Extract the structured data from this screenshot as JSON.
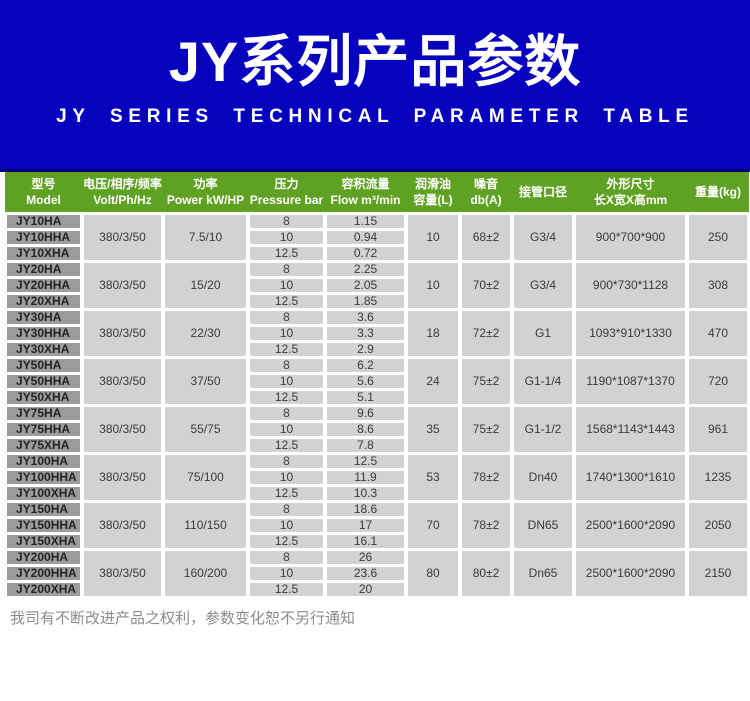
{
  "colors": {
    "brand-blue": "#0702BE",
    "brand-blue-dark": "#030173",
    "header-green": "#5FA122",
    "model-gray": "#9C9C9C",
    "cell-gray": "#D2D2D2",
    "cell-text": "#3A3A3A",
    "footer-text": "#8C8C8C"
  },
  "banner": {
    "title": "JY系列产品参数",
    "subtitle": "JY SERIES TECHNICAL PARAMETER TABLE"
  },
  "table": {
    "headers": [
      {
        "line1": "型号",
        "line2": "Model"
      },
      {
        "line1": "电压/相序/频率",
        "line2": "Volt/Ph/Hz"
      },
      {
        "line1": "功率",
        "line2": "Power kW/HP"
      },
      {
        "line1": "压力",
        "line2": "Pressure bar"
      },
      {
        "line1": "容积流量",
        "line2": "Flow m³/min"
      },
      {
        "line1": "润滑油",
        "line2": "容量(L)"
      },
      {
        "line1": "噪音",
        "line2": "db(A)"
      },
      {
        "line1": "接管口径",
        "line2": ""
      },
      {
        "line1": "外形尺寸",
        "line2": "长X宽X高mm"
      },
      {
        "line1": "重量(kg)",
        "line2": ""
      }
    ],
    "groups": [
      {
        "volt": "380/3/50",
        "power": "7.5/10",
        "oil": "10",
        "noise": "68±2",
        "pipe": "G3/4",
        "dims": "900*700*900",
        "weight": "250",
        "rows": [
          {
            "model": "JY10HA",
            "pressure": "8",
            "flow": "1.15"
          },
          {
            "model": "JY10HHA",
            "pressure": "10",
            "flow": "0.94"
          },
          {
            "model": "JY10XHA",
            "pressure": "12.5",
            "flow": "0.72"
          }
        ]
      },
      {
        "volt": "380/3/50",
        "power": "15/20",
        "oil": "10",
        "noise": "70±2",
        "pipe": "G3/4",
        "dims": "900*730*1128",
        "weight": "308",
        "rows": [
          {
            "model": "JY20HA",
            "pressure": "8",
            "flow": "2.25"
          },
          {
            "model": "JY20HHA",
            "pressure": "10",
            "flow": "2.05"
          },
          {
            "model": "JY20XHA",
            "pressure": "12.5",
            "flow": "1.85"
          }
        ]
      },
      {
        "volt": "380/3/50",
        "power": "22/30",
        "oil": "18",
        "noise": "72±2",
        "pipe": "G1",
        "dims": "1093*910*1330",
        "weight": "470",
        "rows": [
          {
            "model": "JY30HA",
            "pressure": "8",
            "flow": "3.6"
          },
          {
            "model": "JY30HHA",
            "pressure": "10",
            "flow": "3.3"
          },
          {
            "model": "JY30XHA",
            "pressure": "12.5",
            "flow": "2.9"
          }
        ]
      },
      {
        "volt": "380/3/50",
        "power": "37/50",
        "oil": "24",
        "noise": "75±2",
        "pipe": "G1-1/4",
        "dims": "1190*1087*1370",
        "weight": "720",
        "rows": [
          {
            "model": "JY50HA",
            "pressure": "8",
            "flow": "6.2"
          },
          {
            "model": "JY50HHA",
            "pressure": "10",
            "flow": "5.6"
          },
          {
            "model": "JY50XHA",
            "pressure": "12.5",
            "flow": "5.1"
          }
        ]
      },
      {
        "volt": "380/3/50",
        "power": "55/75",
        "oil": "35",
        "noise": "75±2",
        "pipe": "G1-1/2",
        "dims": "1568*1143*1443",
        "weight": "961",
        "rows": [
          {
            "model": "JY75HA",
            "pressure": "8",
            "flow": "9.6"
          },
          {
            "model": "JY75HHA",
            "pressure": "10",
            "flow": "8.6"
          },
          {
            "model": "JY75XHA",
            "pressure": "12.5",
            "flow": "7.8"
          }
        ]
      },
      {
        "volt": "380/3/50",
        "power": "75/100",
        "oil": "53",
        "noise": "78±2",
        "pipe": "Dn40",
        "dims": "1740*1300*1610",
        "weight": "1235",
        "rows": [
          {
            "model": "JY100HA",
            "pressure": "8",
            "flow": "12.5"
          },
          {
            "model": "JY100HHA",
            "pressure": "10",
            "flow": "11.9"
          },
          {
            "model": "JY100XHA",
            "pressure": "12.5",
            "flow": "10.3"
          }
        ]
      },
      {
        "volt": "380/3/50",
        "power": "110/150",
        "oil": "70",
        "noise": "78±2",
        "pipe": "DN65",
        "dims": "2500*1600*2090",
        "weight": "2050",
        "rows": [
          {
            "model": "JY150HA",
            "pressure": "8",
            "flow": "18.6"
          },
          {
            "model": "JY150HHA",
            "pressure": "10",
            "flow": "17"
          },
          {
            "model": "JY150XHA",
            "pressure": "12.5",
            "flow": "16.1"
          }
        ]
      },
      {
        "volt": "380/3/50",
        "power": "160/200",
        "oil": "80",
        "noise": "80±2",
        "pipe": "Dn65",
        "dims": "2500*1600*2090",
        "weight": "2150",
        "rows": [
          {
            "model": "JY200HA",
            "pressure": "8",
            "flow": "26"
          },
          {
            "model": "JY200HHA",
            "pressure": "10",
            "flow": "23.6"
          },
          {
            "model": "JY200XHA",
            "pressure": "12.5",
            "flow": "20"
          }
        ]
      }
    ]
  },
  "footer": {
    "note": "我司有不断改进产品之权利，参数变化恕不另行通知"
  }
}
